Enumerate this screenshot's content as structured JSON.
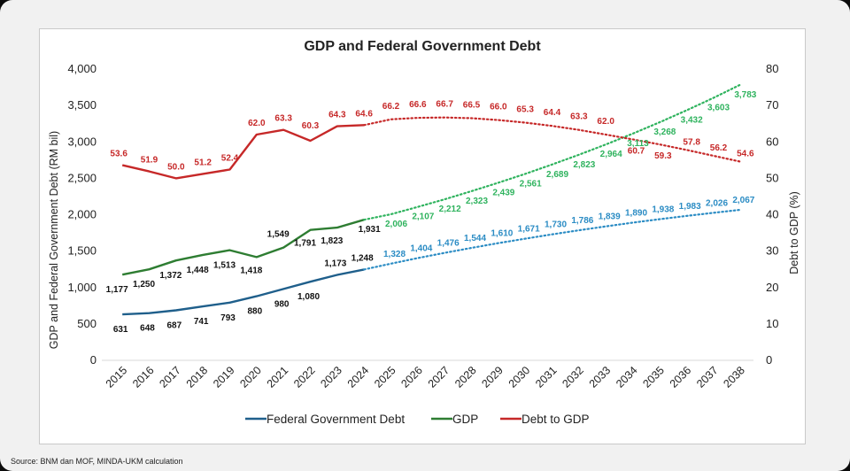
{
  "source_note": "Source: BNM dan MOF, MINDA-UKM calculation",
  "chart_data": {
    "type": "line",
    "title": "GDP and Federal Government Debt",
    "xlabel": "",
    "ylabel": "GDP and Federal Government Debt (RM bil)",
    "y2label": "Debt to GDP (%)",
    "x": [
      2015,
      2016,
      2017,
      2018,
      2019,
      2020,
      2021,
      2022,
      2023,
      2024,
      2025,
      2026,
      2027,
      2028,
      2029,
      2030,
      2031,
      2032,
      2033,
      2034,
      2035,
      2036,
      2037,
      2038
    ],
    "ylim": [
      0,
      4000
    ],
    "y_ticks": [
      "0",
      "500",
      "1,000",
      "1,500",
      "2,000",
      "2,500",
      "3,000",
      "3,500",
      "4,000"
    ],
    "y2lim": [
      0,
      80
    ],
    "y2_ticks": [
      "0",
      "10",
      "20",
      "30",
      "40",
      "50",
      "60",
      "70",
      "80"
    ],
    "actual_until": 2024,
    "legend_position": "bottom",
    "grid": false,
    "series": [
      {
        "name": "Federal Government Debt",
        "axis": "left",
        "color": "#1f5f8b",
        "forecast_color": "#2b8cc4",
        "values": [
          631,
          648,
          687,
          741,
          793,
          880,
          980,
          1080,
          1173,
          1248,
          1328,
          1404,
          1476,
          1544,
          1610,
          1671,
          1730,
          1786,
          1839,
          1890,
          1938,
          1983,
          2026,
          2067
        ],
        "labels": [
          "631",
          "648",
          "687",
          "741",
          "793",
          "880",
          "980",
          "1,080",
          "1,173",
          "1,248",
          "1,328",
          "1,404",
          "1,476",
          "1,544",
          "1,610",
          "1,671",
          "1,730",
          "1,786",
          "1,839",
          "1,890",
          "1,938",
          "1,983",
          "2,026",
          "2,067"
        ]
      },
      {
        "name": "GDP",
        "axis": "left",
        "color": "#2e7d32",
        "forecast_color": "#2fb35e",
        "values": [
          1177,
          1250,
          1372,
          1448,
          1513,
          1418,
          1549,
          1791,
          1823,
          1931,
          2006,
          2107,
          2212,
          2323,
          2439,
          2561,
          2689,
          2823,
          2964,
          3113,
          3268,
          3432,
          3603,
          3783
        ],
        "labels": [
          "1,177",
          "1,250",
          "1,372",
          "1,448",
          "1,513",
          "1,418",
          "1,549",
          "1,791",
          "1,823",
          "1,931",
          "2,006",
          "2,107",
          "2,212",
          "2,323",
          "2,439",
          "2,561",
          "2,689",
          "2,823",
          "2,964",
          "3,113",
          "3,268",
          "3,432",
          "3,603",
          "3,783"
        ]
      },
      {
        "name": "Debt to GDP",
        "axis": "right",
        "color": "#c62828",
        "forecast_color": "#c62828",
        "values": [
          53.6,
          51.9,
          50.0,
          51.2,
          52.4,
          62.0,
          63.3,
          60.3,
          64.3,
          64.6,
          66.2,
          66.6,
          66.7,
          66.5,
          66.0,
          65.3,
          64.4,
          63.3,
          62.0,
          60.7,
          59.3,
          57.8,
          56.2,
          54.6
        ],
        "labels": [
          "53.6",
          "51.9",
          "50.0",
          "51.2",
          "52.4",
          "62.0",
          "63.3",
          "60.3",
          "64.3",
          "64.6",
          "66.2",
          "66.6",
          "66.7",
          "66.5",
          "66.0",
          "65.3",
          "64.4",
          "63.3",
          "62.0",
          "60.7",
          "59.3",
          "57.8",
          "56.2",
          "54.6"
        ]
      }
    ]
  }
}
